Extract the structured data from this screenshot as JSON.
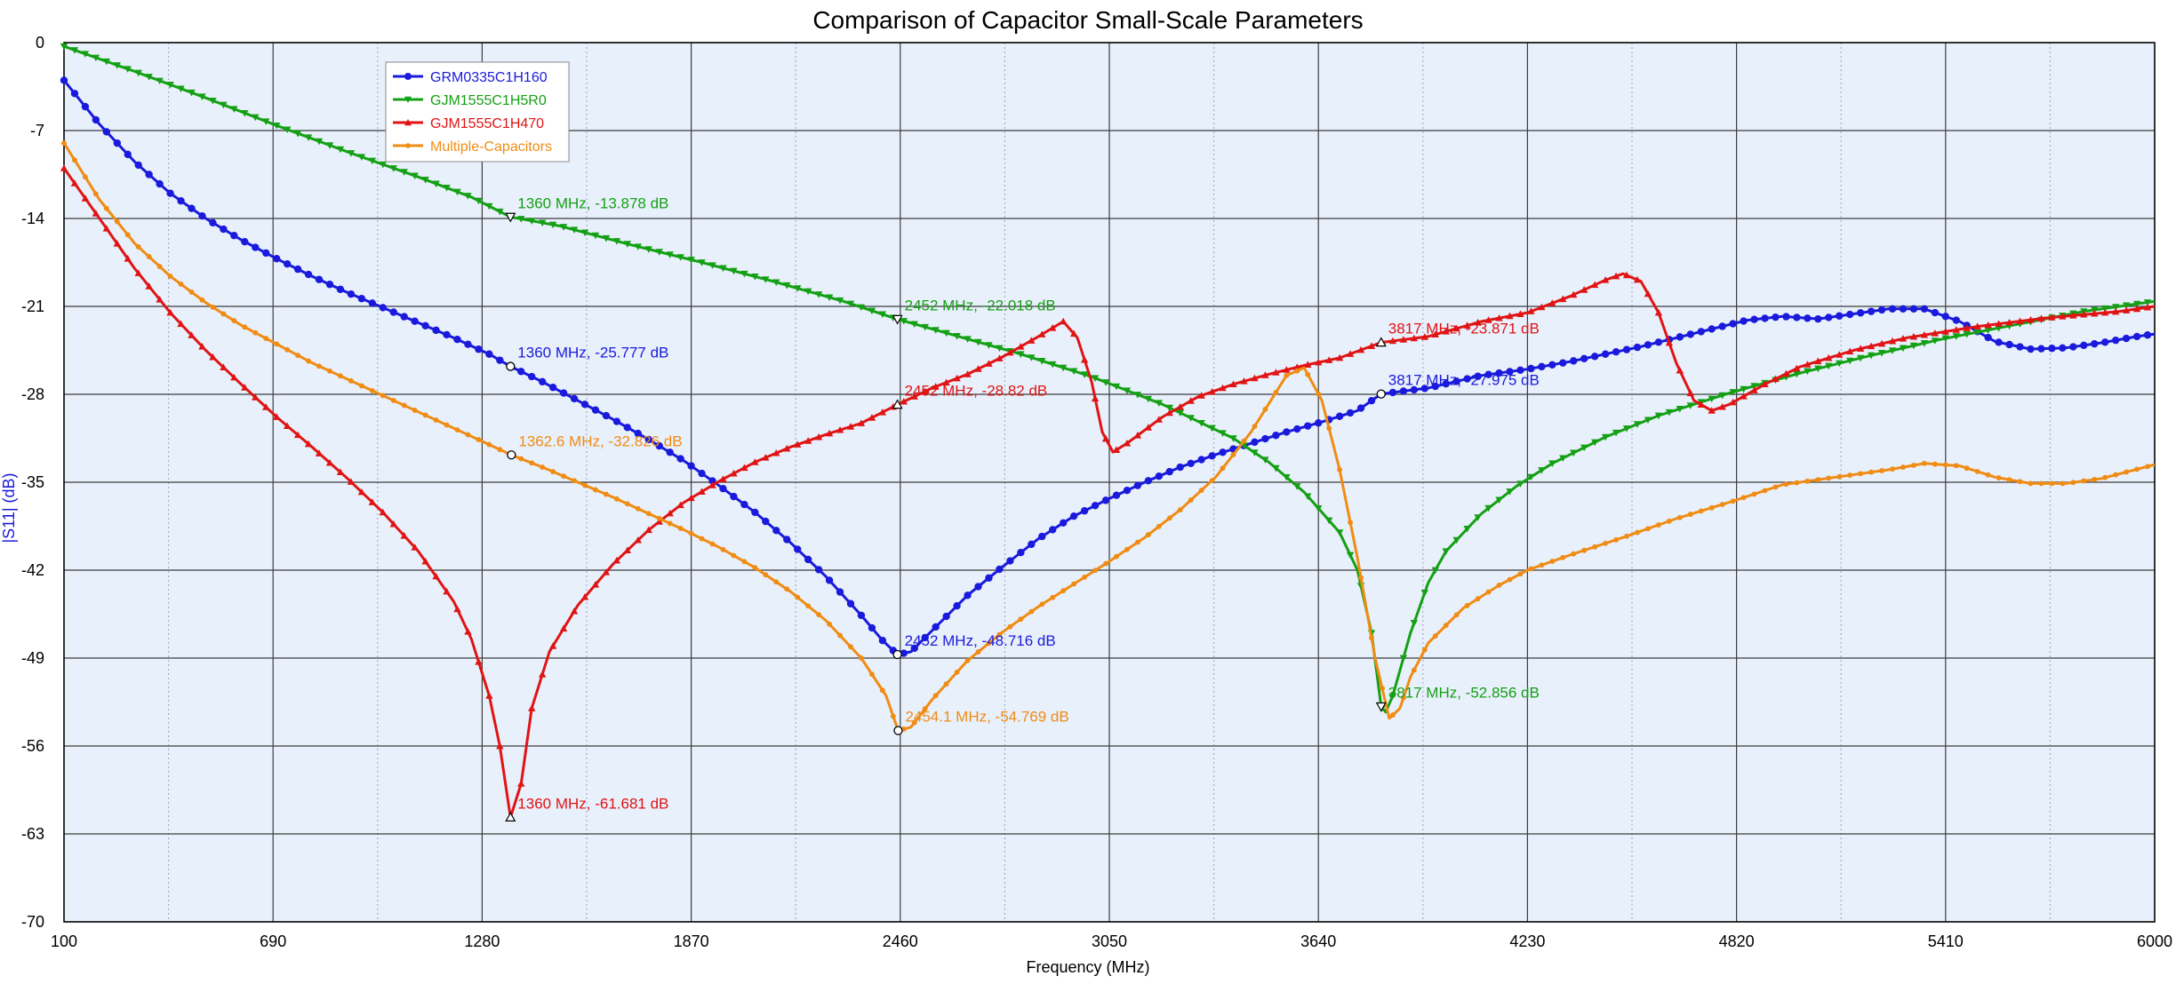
{
  "chart_data": {
    "type": "line",
    "title": "Comparison of Capacitor Small-Scale Parameters",
    "xlabel": "Frequency (MHz)",
    "ylabel": "|S11| (dB)",
    "xlim": [
      100,
      6000
    ],
    "ylim": [
      -70,
      0
    ],
    "x_ticks": [
      100,
      690,
      1280,
      1870,
      2460,
      3050,
      3640,
      4230,
      4820,
      5410,
      6000
    ],
    "y_ticks": [
      0,
      -7,
      -14,
      -21,
      -28,
      -35,
      -42,
      -49,
      -56,
      -63,
      -70
    ],
    "x_minor_step": 295,
    "grid": true,
    "legend_position": "top-left",
    "plot_background": "#e8f0fb",
    "series": [
      {
        "name": "GRM0335C1H160",
        "color": "#1a1adc",
        "marker": "circle",
        "points": [
          [
            100,
            -3
          ],
          [
            200,
            -6.5
          ],
          [
            300,
            -9.5
          ],
          [
            400,
            -12
          ],
          [
            500,
            -14
          ],
          [
            600,
            -15.7
          ],
          [
            700,
            -17.2
          ],
          [
            800,
            -18.6
          ],
          [
            900,
            -19.9
          ],
          [
            1000,
            -21.1
          ],
          [
            1100,
            -22.3
          ],
          [
            1200,
            -23.5
          ],
          [
            1300,
            -24.8
          ],
          [
            1360,
            -25.777
          ],
          [
            1450,
            -27
          ],
          [
            1550,
            -28.5
          ],
          [
            1650,
            -30
          ],
          [
            1750,
            -31.6
          ],
          [
            1850,
            -33.3
          ],
          [
            1950,
            -35.3
          ],
          [
            2050,
            -37.4
          ],
          [
            2150,
            -39.8
          ],
          [
            2250,
            -42.5
          ],
          [
            2350,
            -45.6
          ],
          [
            2410,
            -47.6
          ],
          [
            2452,
            -48.716
          ],
          [
            2490,
            -48.5
          ],
          [
            2550,
            -46.8
          ],
          [
            2650,
            -44
          ],
          [
            2750,
            -41.7
          ],
          [
            2850,
            -39.5
          ],
          [
            2950,
            -37.7
          ],
          [
            3050,
            -36.3
          ],
          [
            3150,
            -35
          ],
          [
            3250,
            -33.8
          ],
          [
            3350,
            -32.8
          ],
          [
            3450,
            -31.9
          ],
          [
            3550,
            -31
          ],
          [
            3650,
            -30.2
          ],
          [
            3750,
            -29.3
          ],
          [
            3817,
            -27.975
          ],
          [
            3950,
            -27.5
          ],
          [
            4100,
            -26.5
          ],
          [
            4230,
            -26
          ],
          [
            4350,
            -25.4
          ],
          [
            4450,
            -24.8
          ],
          [
            4550,
            -24.2
          ],
          [
            4650,
            -23.5
          ],
          [
            4750,
            -22.8
          ],
          [
            4850,
            -22.1
          ],
          [
            4950,
            -21.8
          ],
          [
            5050,
            -22
          ],
          [
            5150,
            -21.6
          ],
          [
            5250,
            -21.2
          ],
          [
            5350,
            -21.2
          ],
          [
            5450,
            -22.2
          ],
          [
            5550,
            -23.8
          ],
          [
            5650,
            -24.4
          ],
          [
            5750,
            -24.3
          ],
          [
            5850,
            -23.9
          ],
          [
            5950,
            -23.4
          ],
          [
            6000,
            -23.2
          ]
        ]
      },
      {
        "name": "GJM1555C1H5R0",
        "color": "#14a014",
        "marker": "triangle-down",
        "points": [
          [
            100,
            -0.3
          ],
          [
            300,
            -2.3
          ],
          [
            500,
            -4.4
          ],
          [
            700,
            -6.6
          ],
          [
            900,
            -8.7
          ],
          [
            1100,
            -10.7
          ],
          [
            1250,
            -12.3
          ],
          [
            1360,
            -13.878
          ],
          [
            1500,
            -14.6
          ],
          [
            1700,
            -16.1
          ],
          [
            1900,
            -17.5
          ],
          [
            2100,
            -19
          ],
          [
            2300,
            -20.6
          ],
          [
            2452,
            -22.018
          ],
          [
            2600,
            -23.2
          ],
          [
            2800,
            -24.8
          ],
          [
            3000,
            -26.6
          ],
          [
            3200,
            -28.8
          ],
          [
            3400,
            -31.5
          ],
          [
            3500,
            -33.4
          ],
          [
            3600,
            -35.8
          ],
          [
            3700,
            -39
          ],
          [
            3750,
            -42
          ],
          [
            3790,
            -47
          ],
          [
            3817,
            -52.856
          ],
          [
            3830,
            -53.3
          ],
          [
            3850,
            -52
          ],
          [
            3900,
            -47
          ],
          [
            3950,
            -43
          ],
          [
            4000,
            -40.5
          ],
          [
            4100,
            -37.5
          ],
          [
            4200,
            -35.3
          ],
          [
            4300,
            -33.5
          ],
          [
            4450,
            -31.4
          ],
          [
            4600,
            -29.7
          ],
          [
            4800,
            -27.9
          ],
          [
            5000,
            -26.3
          ],
          [
            5200,
            -24.9
          ],
          [
            5400,
            -23.6
          ],
          [
            5600,
            -22.5
          ],
          [
            5800,
            -21.4
          ],
          [
            6000,
            -20.6
          ]
        ]
      },
      {
        "name": "GJM1555C1H470",
        "color": "#e01414",
        "marker": "triangle-up",
        "points": [
          [
            100,
            -10
          ],
          [
            200,
            -14
          ],
          [
            300,
            -18
          ],
          [
            400,
            -21.5
          ],
          [
            500,
            -24.5
          ],
          [
            600,
            -27.2
          ],
          [
            700,
            -29.8
          ],
          [
            800,
            -32.2
          ],
          [
            900,
            -34.7
          ],
          [
            1000,
            -37.4
          ],
          [
            1100,
            -40.5
          ],
          [
            1200,
            -44.5
          ],
          [
            1250,
            -47.5
          ],
          [
            1300,
            -52
          ],
          [
            1330,
            -56
          ],
          [
            1360,
            -61.681
          ],
          [
            1390,
            -59
          ],
          [
            1420,
            -53
          ],
          [
            1470,
            -48.5
          ],
          [
            1550,
            -44.8
          ],
          [
            1650,
            -41.5
          ],
          [
            1750,
            -38.8
          ],
          [
            1850,
            -36.6
          ],
          [
            1950,
            -34.9
          ],
          [
            2050,
            -33.4
          ],
          [
            2150,
            -32.2
          ],
          [
            2250,
            -31.2
          ],
          [
            2350,
            -30.3
          ],
          [
            2452,
            -28.82
          ],
          [
            2550,
            -27.5
          ],
          [
            2650,
            -26.4
          ],
          [
            2750,
            -25
          ],
          [
            2850,
            -23.4
          ],
          [
            2920,
            -22.2
          ],
          [
            2960,
            -23.5
          ],
          [
            3000,
            -27
          ],
          [
            3030,
            -31
          ],
          [
            3060,
            -32.6
          ],
          [
            3100,
            -31.9
          ],
          [
            3200,
            -29.8
          ],
          [
            3300,
            -28.2
          ],
          [
            3400,
            -27.2
          ],
          [
            3500,
            -26.4
          ],
          [
            3600,
            -25.7
          ],
          [
            3700,
            -25.1
          ],
          [
            3817,
            -23.871
          ],
          [
            3950,
            -23.4
          ],
          [
            4100,
            -22.2
          ],
          [
            4230,
            -21.5
          ],
          [
            4350,
            -20.2
          ],
          [
            4450,
            -18.9
          ],
          [
            4500,
            -18.4
          ],
          [
            4550,
            -19
          ],
          [
            4600,
            -21.5
          ],
          [
            4650,
            -25.5
          ],
          [
            4700,
            -28.5
          ],
          [
            4750,
            -29.3
          ],
          [
            4800,
            -28.8
          ],
          [
            4900,
            -27.2
          ],
          [
            5000,
            -25.8
          ],
          [
            5150,
            -24.5
          ],
          [
            5300,
            -23.5
          ],
          [
            5500,
            -22.6
          ],
          [
            5700,
            -21.9
          ],
          [
            5900,
            -21.4
          ],
          [
            6000,
            -21
          ]
        ]
      },
      {
        "name": "Multiple-Capacitors",
        "color": "#f08c14",
        "marker": "circle-small",
        "points": [
          [
            100,
            -8
          ],
          [
            200,
            -12.5
          ],
          [
            300,
            -16
          ],
          [
            400,
            -18.6
          ],
          [
            500,
            -20.7
          ],
          [
            600,
            -22.5
          ],
          [
            700,
            -24
          ],
          [
            800,
            -25.5
          ],
          [
            900,
            -26.8
          ],
          [
            1000,
            -28.1
          ],
          [
            1100,
            -29.4
          ],
          [
            1200,
            -30.7
          ],
          [
            1300,
            -32
          ],
          [
            1362.6,
            -32.826
          ],
          [
            1450,
            -33.8
          ],
          [
            1550,
            -35
          ],
          [
            1650,
            -36.2
          ],
          [
            1750,
            -37.5
          ],
          [
            1850,
            -38.8
          ],
          [
            1950,
            -40.2
          ],
          [
            2050,
            -41.8
          ],
          [
            2150,
            -43.7
          ],
          [
            2250,
            -46
          ],
          [
            2350,
            -49
          ],
          [
            2420,
            -52
          ],
          [
            2454.1,
            -54.769
          ],
          [
            2490,
            -54.5
          ],
          [
            2550,
            -52.3
          ],
          [
            2650,
            -49.2
          ],
          [
            2750,
            -46.9
          ],
          [
            2850,
            -44.9
          ],
          [
            2950,
            -43.1
          ],
          [
            3050,
            -41.3
          ],
          [
            3150,
            -39.4
          ],
          [
            3250,
            -37.2
          ],
          [
            3350,
            -34.6
          ],
          [
            3450,
            -31
          ],
          [
            3550,
            -26.5
          ],
          [
            3600,
            -25.9
          ],
          [
            3650,
            -28.5
          ],
          [
            3700,
            -34
          ],
          [
            3750,
            -41
          ],
          [
            3800,
            -49
          ],
          [
            3840,
            -53.8
          ],
          [
            3870,
            -53
          ],
          [
            3900,
            -50.5
          ],
          [
            3950,
            -47.8
          ],
          [
            4050,
            -45
          ],
          [
            4150,
            -43.2
          ],
          [
            4230,
            -42
          ],
          [
            4350,
            -40.8
          ],
          [
            4500,
            -39.4
          ],
          [
            4650,
            -37.9
          ],
          [
            4800,
            -36.6
          ],
          [
            4950,
            -35.2
          ],
          [
            5100,
            -34.6
          ],
          [
            5250,
            -34
          ],
          [
            5350,
            -33.5
          ],
          [
            5450,
            -33.7
          ],
          [
            5550,
            -34.6
          ],
          [
            5650,
            -35.1
          ],
          [
            5750,
            -35.1
          ],
          [
            5850,
            -34.7
          ],
          [
            6000,
            -33.6
          ]
        ]
      }
    ],
    "annotations": [
      {
        "series": 1,
        "x": 1360,
        "y": -13.878,
        "text": "1360 MHz, -13.878 dB"
      },
      {
        "series": 1,
        "x": 2452,
        "y": -22.018,
        "text": "2452 MHz, -22.018 dB"
      },
      {
        "series": 1,
        "x": 3817,
        "y": -52.856,
        "text": "3817 MHz, -52.856 dB"
      },
      {
        "series": 0,
        "x": 1360,
        "y": -25.777,
        "text": "1360 MHz, -25.777 dB"
      },
      {
        "series": 0,
        "x": 2452,
        "y": -48.716,
        "text": "2452 MHz, -48.716 dB"
      },
      {
        "series": 0,
        "x": 3817,
        "y": -27.975,
        "text": "3817 MHz, -27.975 dB"
      },
      {
        "series": 2,
        "x": 1360,
        "y": -61.681,
        "text": "1360 MHz, -61.681 dB"
      },
      {
        "series": 2,
        "x": 2452,
        "y": -28.82,
        "text": "2452 MHz, -28.82 dB"
      },
      {
        "series": 2,
        "x": 3817,
        "y": -23.871,
        "text": "3817 MHz, -23.871 dB"
      },
      {
        "series": 3,
        "x": 1362.6,
        "y": -32.826,
        "text": "1362.6 MHz, -32.826 dB"
      },
      {
        "series": 3,
        "x": 2454.1,
        "y": -54.769,
        "text": "2454.1 MHz, -54.769 dB"
      }
    ]
  }
}
